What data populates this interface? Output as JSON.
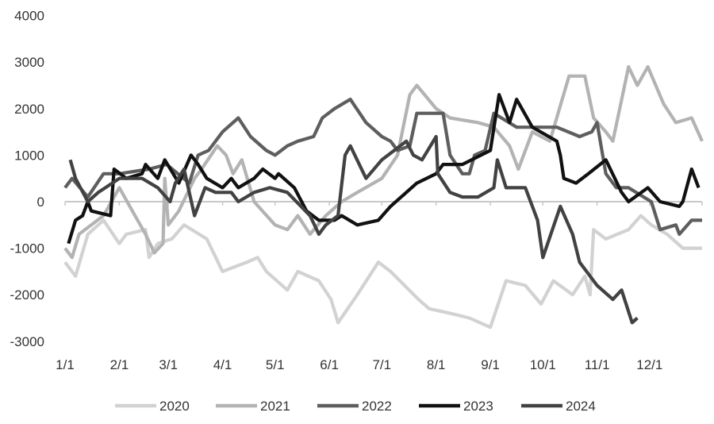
{
  "chart_data": {
    "type": "line",
    "title": "",
    "xlabel": "",
    "ylabel": "",
    "ylim": [
      -3000,
      4000
    ],
    "yticks": [
      "4000",
      "3000",
      "2000",
      "1000",
      "0",
      "-1000",
      "-2000",
      "-3000"
    ],
    "xticks": [
      "1/1",
      "2/1",
      "3/1",
      "4/1",
      "5/1",
      "6/1",
      "7/1",
      "8/1",
      "9/1",
      "10/1",
      "11/1",
      "12/1"
    ],
    "grid": false,
    "legend": "bottom",
    "series": [
      {
        "name": "2020",
        "color": "#d2d2d2",
        "points": [
          [
            "01-01",
            -1300
          ],
          [
            "01-07",
            -1600
          ],
          [
            "01-14",
            -700
          ],
          [
            "01-23",
            -400
          ],
          [
            "02-01",
            -900
          ],
          [
            "02-05",
            -700
          ],
          [
            "02-16",
            -600
          ],
          [
            "02-18",
            -1200
          ],
          [
            "02-23",
            -900
          ],
          [
            "03-03",
            -800
          ],
          [
            "03-10",
            -500
          ],
          [
            "03-23",
            -800
          ],
          [
            "04-01",
            -1500
          ],
          [
            "04-15",
            -1300
          ],
          [
            "04-21",
            -1200
          ],
          [
            "04-26",
            -1500
          ],
          [
            "05-08",
            -1900
          ],
          [
            "05-14",
            -1500
          ],
          [
            "05-26",
            -1700
          ],
          [
            "06-02",
            -2100
          ],
          [
            "06-06",
            -2600
          ],
          [
            "06-17",
            -2000
          ],
          [
            "06-29",
            -1300
          ],
          [
            "07-06",
            -1500
          ],
          [
            "07-22",
            -2100
          ],
          [
            "07-28",
            -2300
          ],
          [
            "08-09",
            -2400
          ],
          [
            "08-20",
            -2500
          ],
          [
            "09-01",
            -2700
          ],
          [
            "09-10",
            -1700
          ],
          [
            "09-21",
            -1800
          ],
          [
            "09-30",
            -2200
          ],
          [
            "10-07",
            -1700
          ],
          [
            "10-18",
            -2000
          ],
          [
            "10-25",
            -1600
          ],
          [
            "10-28",
            -2000
          ],
          [
            "10-30",
            -600
          ],
          [
            "11-06",
            -800
          ],
          [
            "11-19",
            -600
          ],
          [
            "11-26",
            -300
          ],
          [
            "12-02",
            -500
          ],
          [
            "12-11",
            -700
          ],
          [
            "12-20",
            -1000
          ],
          [
            "12-31",
            -1000
          ]
        ]
      },
      {
        "name": "2021",
        "color": "#b3b3b3",
        "points": [
          [
            "01-01",
            -1000
          ],
          [
            "01-05",
            -1200
          ],
          [
            "01-09",
            -700
          ],
          [
            "01-23",
            -300
          ],
          [
            "02-01",
            300
          ],
          [
            "02-10",
            -300
          ],
          [
            "02-16",
            -700
          ],
          [
            "02-21",
            -1100
          ],
          [
            "02-26",
            -900
          ],
          [
            "02-27",
            500
          ],
          [
            "03-01",
            -500
          ],
          [
            "03-07",
            -200
          ],
          [
            "03-16",
            500
          ],
          [
            "03-20",
            700
          ],
          [
            "03-29",
            1200
          ],
          [
            "04-03",
            1000
          ],
          [
            "04-07",
            600
          ],
          [
            "04-12",
            900
          ],
          [
            "04-19",
            0
          ],
          [
            "05-01",
            -500
          ],
          [
            "05-08",
            -600
          ],
          [
            "05-14",
            -300
          ],
          [
            "05-21",
            -700
          ],
          [
            "05-30",
            -300
          ],
          [
            "06-08",
            0
          ],
          [
            "06-17",
            200
          ],
          [
            "07-01",
            500
          ],
          [
            "07-10",
            1000
          ],
          [
            "07-17",
            2300
          ],
          [
            "07-21",
            2500
          ],
          [
            "08-01",
            2000
          ],
          [
            "08-09",
            1800
          ],
          [
            "08-25",
            1700
          ],
          [
            "09-03",
            1600
          ],
          [
            "09-12",
            1200
          ],
          [
            "09-17",
            700
          ],
          [
            "09-25",
            1500
          ],
          [
            "10-05",
            1300
          ],
          [
            "10-16",
            2700
          ],
          [
            "10-25",
            2700
          ],
          [
            "10-30",
            1800
          ],
          [
            "11-06",
            1500
          ],
          [
            "11-10",
            1300
          ],
          [
            "11-19",
            2900
          ],
          [
            "11-24",
            2500
          ],
          [
            "11-30",
            2900
          ],
          [
            "12-09",
            2100
          ],
          [
            "12-16",
            1700
          ],
          [
            "12-25",
            1800
          ],
          [
            "12-31",
            1300
          ]
        ]
      },
      {
        "name": "2022",
        "color": "#5e5e5e",
        "points": [
          [
            "01-01",
            300
          ],
          [
            "01-05",
            500
          ],
          [
            "01-14",
            100
          ],
          [
            "01-23",
            600
          ],
          [
            "02-01",
            600
          ],
          [
            "02-18",
            700
          ],
          [
            "02-28",
            800
          ],
          [
            "03-13",
            400
          ],
          [
            "03-18",
            1000
          ],
          [
            "03-24",
            1100
          ],
          [
            "04-01",
            1500
          ],
          [
            "04-10",
            1800
          ],
          [
            "04-17",
            1400
          ],
          [
            "04-26",
            1100
          ],
          [
            "05-01",
            1000
          ],
          [
            "05-08",
            1200
          ],
          [
            "05-14",
            1300
          ],
          [
            "05-23",
            1400
          ],
          [
            "05-28",
            1800
          ],
          [
            "06-04",
            2000
          ],
          [
            "06-13",
            2200
          ],
          [
            "06-22",
            1700
          ],
          [
            "07-01",
            1400
          ],
          [
            "07-06",
            1300
          ],
          [
            "07-10",
            1100
          ],
          [
            "07-17",
            1200
          ],
          [
            "07-21",
            1900
          ],
          [
            "08-05",
            1900
          ],
          [
            "08-09",
            1000
          ],
          [
            "08-16",
            600
          ],
          [
            "08-20",
            600
          ],
          [
            "08-23",
            1000
          ],
          [
            "08-29",
            1100
          ],
          [
            "09-03",
            1900
          ],
          [
            "09-16",
            1600
          ],
          [
            "10-09",
            1600
          ],
          [
            "10-22",
            1400
          ],
          [
            "10-29",
            1500
          ],
          [
            "11-01",
            1700
          ],
          [
            "11-06",
            600
          ],
          [
            "11-12",
            300
          ],
          [
            "11-19",
            300
          ],
          [
            "12-02",
            0
          ],
          [
            "12-07",
            -600
          ],
          [
            "12-16",
            -500
          ],
          [
            "12-18",
            -700
          ],
          [
            "12-25",
            -400
          ],
          [
            "12-31",
            -400
          ]
        ]
      },
      {
        "name": "2023",
        "color": "#111111",
        "points": [
          [
            "01-03",
            -900
          ],
          [
            "01-07",
            -400
          ],
          [
            "01-11",
            -300
          ],
          [
            "01-14",
            0
          ],
          [
            "01-16",
            -200
          ],
          [
            "01-27",
            -300
          ],
          [
            "01-29",
            700
          ],
          [
            "02-05",
            500
          ],
          [
            "02-14",
            600
          ],
          [
            "02-16",
            800
          ],
          [
            "02-23",
            500
          ],
          [
            "02-27",
            900
          ],
          [
            "03-07",
            400
          ],
          [
            "03-14",
            1000
          ],
          [
            "03-18",
            800
          ],
          [
            "03-23",
            500
          ],
          [
            "04-01",
            300
          ],
          [
            "04-06",
            500
          ],
          [
            "04-10",
            300
          ],
          [
            "04-19",
            500
          ],
          [
            "04-24",
            700
          ],
          [
            "05-01",
            500
          ],
          [
            "05-03",
            600
          ],
          [
            "05-12",
            300
          ],
          [
            "05-19",
            -200
          ],
          [
            "05-26",
            -400
          ],
          [
            "06-04",
            -400
          ],
          [
            "06-08",
            -300
          ],
          [
            "06-17",
            -500
          ],
          [
            "06-29",
            -400
          ],
          [
            "07-06",
            -100
          ],
          [
            "07-15",
            200
          ],
          [
            "07-21",
            400
          ],
          [
            "08-01",
            600
          ],
          [
            "08-05",
            800
          ],
          [
            "08-16",
            800
          ],
          [
            "09-01",
            1100
          ],
          [
            "09-06",
            2300
          ],
          [
            "09-12",
            1700
          ],
          [
            "09-16",
            2200
          ],
          [
            "09-25",
            1600
          ],
          [
            "10-09",
            1300
          ],
          [
            "10-11",
            1000
          ],
          [
            "10-13",
            500
          ],
          [
            "10-20",
            400
          ],
          [
            "10-27",
            600
          ],
          [
            "11-06",
            900
          ],
          [
            "11-15",
            200
          ],
          [
            "11-19",
            0
          ],
          [
            "11-30",
            300
          ],
          [
            "12-07",
            0
          ],
          [
            "12-18",
            -100
          ],
          [
            "12-20",
            0
          ],
          [
            "12-25",
            700
          ],
          [
            "12-29",
            300
          ]
        ]
      },
      {
        "name": "2024",
        "color": "#424242",
        "points": [
          [
            "01-04",
            900
          ],
          [
            "01-07",
            500
          ],
          [
            "01-14",
            0
          ],
          [
            "01-20",
            200
          ],
          [
            "02-01",
            500
          ],
          [
            "02-14",
            500
          ],
          [
            "02-23",
            300
          ],
          [
            "03-02",
            0
          ],
          [
            "03-05",
            400
          ],
          [
            "03-10",
            700
          ],
          [
            "03-16",
            -300
          ],
          [
            "03-22",
            300
          ],
          [
            "03-28",
            200
          ],
          [
            "04-06",
            200
          ],
          [
            "04-10",
            0
          ],
          [
            "04-19",
            200
          ],
          [
            "04-28",
            300
          ],
          [
            "05-08",
            200
          ],
          [
            "05-21",
            -300
          ],
          [
            "05-26",
            -700
          ],
          [
            "05-30",
            -500
          ],
          [
            "06-06",
            -300
          ],
          [
            "06-10",
            1000
          ],
          [
            "06-13",
            1200
          ],
          [
            "06-22",
            500
          ],
          [
            "07-01",
            900
          ],
          [
            "07-15",
            1300
          ],
          [
            "07-19",
            1000
          ],
          [
            "07-24",
            900
          ],
          [
            "08-01",
            1400
          ],
          [
            "08-02",
            600
          ],
          [
            "08-09",
            200
          ],
          [
            "08-16",
            100
          ],
          [
            "08-25",
            100
          ],
          [
            "09-03",
            300
          ],
          [
            "09-05",
            900
          ],
          [
            "09-10",
            300
          ],
          [
            "09-21",
            300
          ],
          [
            "09-28",
            -400
          ],
          [
            "10-01",
            -1200
          ],
          [
            "10-11",
            -100
          ],
          [
            "10-18",
            -700
          ],
          [
            "10-22",
            -1300
          ],
          [
            "11-01",
            -1800
          ],
          [
            "11-10",
            -2100
          ],
          [
            "11-15",
            -1900
          ],
          [
            "11-21",
            -2600
          ],
          [
            "11-24",
            -2500
          ]
        ]
      }
    ]
  }
}
